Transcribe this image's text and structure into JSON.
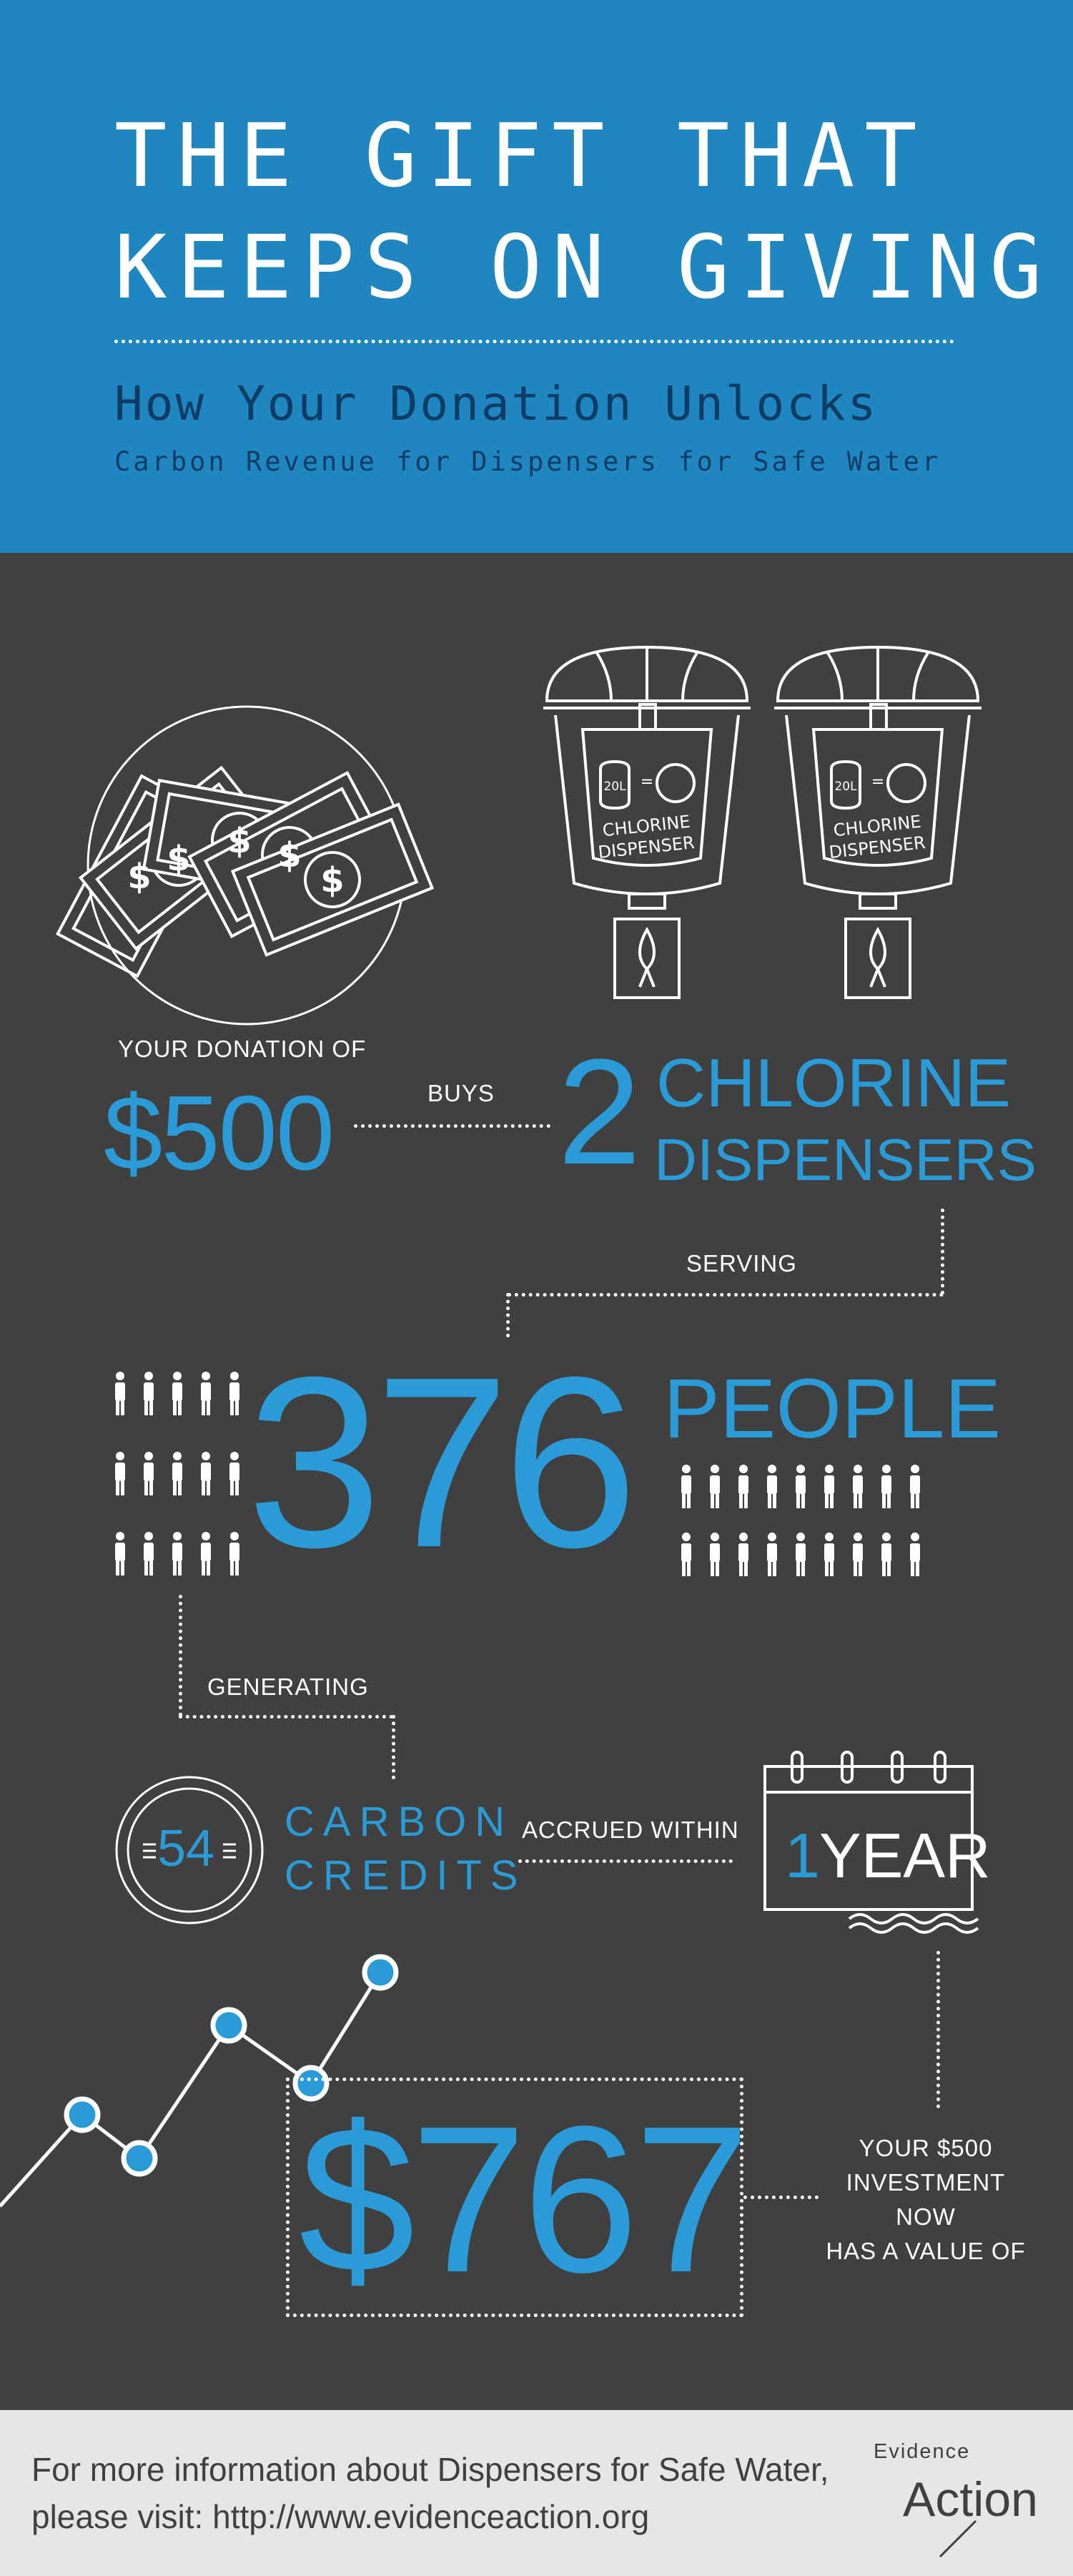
{
  "header": {
    "title_line1": "THE GIFT THAT",
    "title_line2": "KEEPS ON GIVING",
    "subtitle": "How Your Donation Unlocks",
    "subtitle2": "Carbon Revenue for Dispensers for Safe Water"
  },
  "dispenser": {
    "label_line1": "CHLORINE",
    "label_line2": "DISPENSER",
    "volume": "20L"
  },
  "donation": {
    "label": "YOUR DONATION OF",
    "amount": "$500",
    "buys": "BUYS",
    "count": "2",
    "item_line1": "CHLORINE",
    "item_line2": "DISPENSERS"
  },
  "serving": {
    "label": "SERVING",
    "count": "376",
    "unit": "PEOPLE"
  },
  "generating": {
    "label": "GENERATING",
    "credits": "54",
    "credits_line1": "CARBON",
    "credits_line2": "CREDITS",
    "accrued": "ACCRUED WITHIN",
    "year_number": "1",
    "year_word": "YEAR"
  },
  "value": {
    "amount": "$767",
    "label_line1": "YOUR $500",
    "label_line2": "INVESTMENT NOW",
    "label_line3": "HAS A VALUE OF"
  },
  "footer": {
    "line1": "For more information about Dispensers for Safe Water,",
    "line2": "please visit: http://www.evidenceaction.org",
    "logo_small": "Evidence",
    "logo_big": "Action"
  },
  "colors": {
    "header_bg": "#1f86bf",
    "body_bg": "#404041",
    "accent": "#2a9bd7",
    "dark_blue": "#0d3d66",
    "footer_bg": "#e6e6e6"
  }
}
